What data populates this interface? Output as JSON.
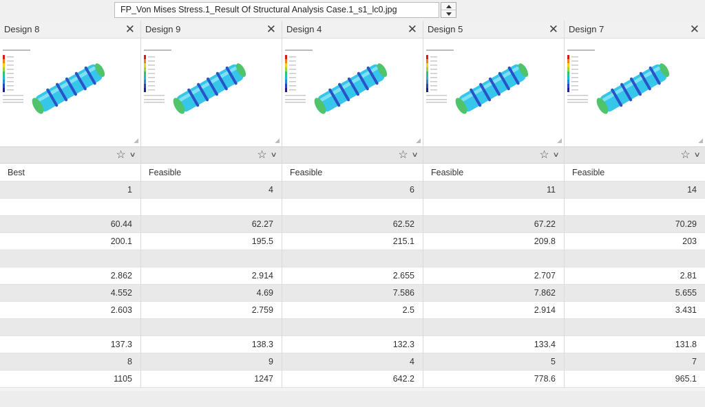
{
  "file_selector": {
    "value": "FP_Von Mises Stress.1_Result Of Structural Analysis Case.1_s1_lc0.jpg"
  },
  "columns": [
    {
      "title": "Design 8",
      "status": "Best",
      "values": [
        "1",
        "",
        "60.44",
        "200.1",
        "",
        "2.862",
        "4.552",
        "2.603",
        "",
        "137.3",
        "8",
        "1105"
      ]
    },
    {
      "title": "Design 9",
      "status": "Feasible",
      "values": [
        "4",
        "",
        "62.27",
        "195.5",
        "",
        "2.914",
        "4.69",
        "2.759",
        "",
        "138.3",
        "9",
        "1247"
      ]
    },
    {
      "title": "Design 4",
      "status": "Feasible",
      "values": [
        "6",
        "",
        "62.52",
        "215.1",
        "",
        "2.655",
        "7.586",
        "2.5",
        "",
        "132.3",
        "4",
        "642.2"
      ]
    },
    {
      "title": "Design 5",
      "status": "Feasible",
      "values": [
        "11",
        "",
        "67.22",
        "209.8",
        "",
        "2.707",
        "7.862",
        "2.914",
        "",
        "133.4",
        "5",
        "778.6"
      ]
    },
    {
      "title": "Design 7",
      "status": "Feasible",
      "values": [
        "14",
        "",
        "70.29",
        "203",
        "",
        "2.81",
        "5.655",
        "3.431",
        "",
        "131.8",
        "7",
        "965.1"
      ]
    }
  ],
  "icons": {
    "close": "close-icon",
    "favorite": "star-icon",
    "menu": "chevron-down-icon"
  },
  "colors": {
    "row_shaded": "#e9e9e9",
    "row_plain": "#ffffff",
    "part_cyan": "#35c6ea",
    "part_ring": "#2a52c9",
    "part_end": "#4fc46a"
  }
}
